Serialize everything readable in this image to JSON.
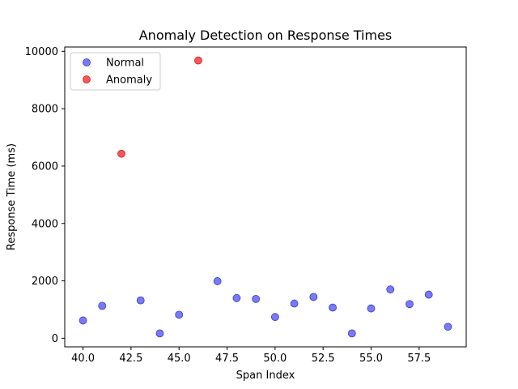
{
  "chart_data": {
    "type": "scatter",
    "title": "Anomaly Detection on Response Times",
    "xlabel": "Span Index",
    "ylabel": "Response Time (ms)",
    "xlim": [
      39.05,
      59.95
    ],
    "ylim": [
      -300,
      10150
    ],
    "xticks": [
      40.0,
      42.5,
      45.0,
      47.5,
      50.0,
      52.5,
      55.0,
      57.5
    ],
    "xtick_labels": [
      "40.0",
      "42.5",
      "45.0",
      "47.5",
      "50.0",
      "52.5",
      "55.0",
      "57.5"
    ],
    "yticks": [
      0,
      2000,
      4000,
      6000,
      8000,
      10000
    ],
    "ytick_labels": [
      "0",
      "2000",
      "4000",
      "6000",
      "8000",
      "10000"
    ],
    "grid": false,
    "legend_position": "top-left",
    "series": [
      {
        "name": "Normal",
        "color": "#6b6bf0",
        "edge_color": "#3a3ad8",
        "points": [
          {
            "x": 40,
            "y": 620
          },
          {
            "x": 41,
            "y": 1130
          },
          {
            "x": 43,
            "y": 1320
          },
          {
            "x": 44,
            "y": 170
          },
          {
            "x": 45,
            "y": 820
          },
          {
            "x": 47,
            "y": 1990
          },
          {
            "x": 48,
            "y": 1400
          },
          {
            "x": 49,
            "y": 1370
          },
          {
            "x": 50,
            "y": 740
          },
          {
            "x": 51,
            "y": 1210
          },
          {
            "x": 52,
            "y": 1440
          },
          {
            "x": 53,
            "y": 1070
          },
          {
            "x": 54,
            "y": 170
          },
          {
            "x": 55,
            "y": 1040
          },
          {
            "x": 56,
            "y": 1700
          },
          {
            "x": 57,
            "y": 1190
          },
          {
            "x": 58,
            "y": 1520
          },
          {
            "x": 59,
            "y": 400
          }
        ]
      },
      {
        "name": "Anomaly",
        "color": "#f04545",
        "edge_color": "#d61e1e",
        "points": [
          {
            "x": 42,
            "y": 6430
          },
          {
            "x": 46,
            "y": 9680
          }
        ]
      }
    ]
  }
}
